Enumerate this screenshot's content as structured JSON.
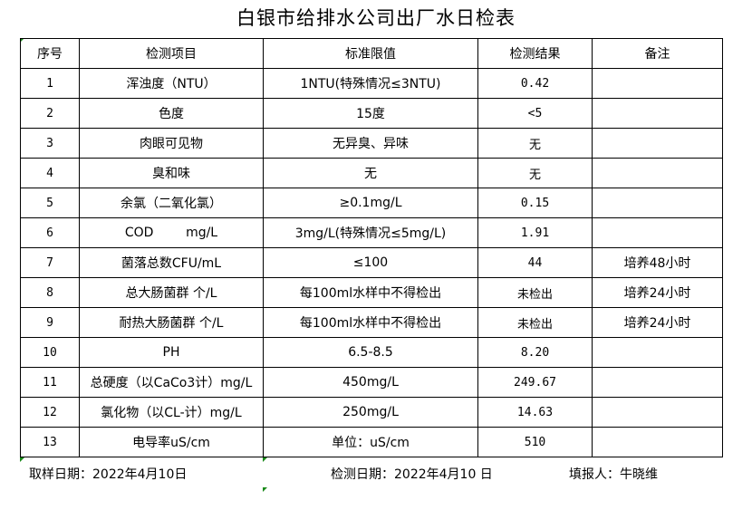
{
  "title": "白银市给排水公司出厂水日检表",
  "headers": [
    "序号",
    "检测项目",
    "标准限值",
    "检测结果",
    "备注"
  ],
  "rows": [
    [
      "1",
      "浑浊度（NTU）",
      "1NTU(特殊情况≤3NTU)",
      "0.42",
      ""
    ],
    [
      "2",
      "色度",
      "15度",
      "<5",
      ""
    ],
    [
      "3",
      "肉眼可见物",
      "无异臭、异味",
      "无",
      ""
    ],
    [
      "4",
      "臭和味",
      "无",
      "无",
      ""
    ],
    [
      "5",
      "余氯（二氧化氯）",
      "≥0.1mg/L",
      "0.15",
      ""
    ],
    [
      "6",
      "COD        mg/L",
      "3mg/L(特殊情况≤5mg/L)",
      "1.91",
      ""
    ],
    [
      "7",
      "菌落总数CFU/mL",
      "≤100",
      "44",
      "培养48小时"
    ],
    [
      "8",
      "总大肠菌群 个/L",
      "每100ml水样中不得检出",
      "未检出",
      "培养24小时"
    ],
    [
      "9",
      "耐热大肠菌群 个/L",
      "每100ml水样中不得检出",
      "未检出",
      "培养24小时"
    ],
    [
      "10",
      "PH",
      "6.5-8.5",
      "8.20",
      ""
    ],
    [
      "11",
      "总硬度（以CaCo3计）mg/L",
      "450mg/L",
      "249.67",
      ""
    ],
    [
      "12",
      "氯化物（以CL-计）mg/L",
      "250mg/L",
      "14.63",
      ""
    ],
    [
      "13",
      "电导率uS/cm",
      "单位：uS/cm",
      "510",
      ""
    ]
  ],
  "footer": {
    "sample_date": "取样日期：2022年4月10日",
    "test_date": "检测日期：2022年4月10 日",
    "reporter": "填报人：牛晓维"
  }
}
